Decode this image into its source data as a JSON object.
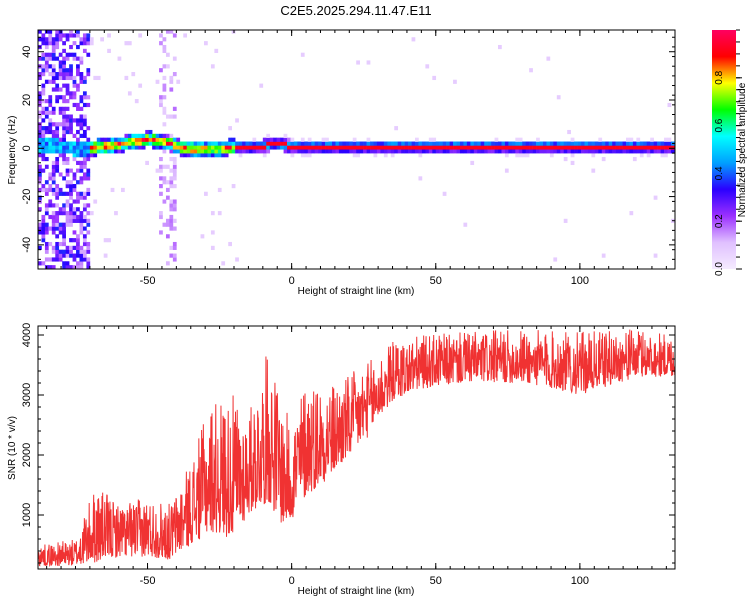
{
  "title": "C2E5.2025.294.11.47.E11",
  "chart_data": [
    {
      "type": "heatmap",
      "xlabel": "Height of straight line (km)",
      "ylabel": "Frequency (Hz)",
      "xlim": [
        -88,
        133
      ],
      "ylim": [
        -50,
        49
      ],
      "x_ticks": [
        -50,
        0,
        50,
        100
      ],
      "y_ticks": [
        -40,
        -20,
        0,
        20,
        40
      ],
      "grid": false,
      "colorbar": {
        "label": "Normalized spectral amplitude",
        "range": [
          0,
          1
        ],
        "ticks": [
          "0.0",
          "0.2",
          "0.4",
          "0.6",
          "0.8"
        ],
        "tick_values": [
          0,
          0.2,
          0.4,
          0.6,
          0.8
        ],
        "colormap": [
          "#f5ebff",
          "#e0c0ff",
          "#9b30ff",
          "#2a00ff",
          "#00a0ff",
          "#00ffff",
          "#00ff00",
          "#ffff00",
          "#ff0000",
          "#ff0060"
        ]
      },
      "ridge": {
        "description": "strong narrow band near 0 Hz",
        "center_hz": [
          [
            -84,
            0
          ],
          [
            -72,
            -1
          ],
          [
            -66,
            0
          ],
          [
            -60,
            1
          ],
          [
            -55,
            2
          ],
          [
            -50,
            3
          ],
          [
            -46,
            2
          ],
          [
            -42,
            1
          ],
          [
            -38,
            -1
          ],
          [
            -32,
            -1
          ],
          [
            -26,
            -1
          ],
          [
            -20,
            0
          ],
          [
            -12,
            0
          ],
          [
            -6,
            1
          ],
          [
            0,
            0
          ],
          [
            20,
            0
          ],
          [
            50,
            0
          ],
          [
            80,
            0
          ],
          [
            110,
            0
          ],
          [
            133,
            0
          ]
        ]
      }
    },
    {
      "type": "line",
      "xlabel": "Height of straight line (km)",
      "ylabel": "SNR (10 * v/v)",
      "xlim": [
        -88,
        133
      ],
      "ylim": [
        100,
        4150
      ],
      "x_ticks": [
        -50,
        0,
        50,
        100
      ],
      "y_ticks": [
        1000,
        2000,
        3000,
        4000
      ],
      "grid": false,
      "color": "#f03232",
      "envelope": [
        {
          "x": -88,
          "low": 150,
          "high": 500
        },
        {
          "x": -75,
          "low": 150,
          "high": 600
        },
        {
          "x": -68,
          "low": 200,
          "high": 1500
        },
        {
          "x": -60,
          "low": 300,
          "high": 1200
        },
        {
          "x": -50,
          "low": 300,
          "high": 1300
        },
        {
          "x": -42,
          "low": 250,
          "high": 1200
        },
        {
          "x": -35,
          "low": 500,
          "high": 1900
        },
        {
          "x": -28,
          "low": 700,
          "high": 2900
        },
        {
          "x": -20,
          "low": 600,
          "high": 3000
        },
        {
          "x": -15,
          "low": 1000,
          "high": 2700
        },
        {
          "x": -8,
          "low": 1200,
          "high": 3800
        },
        {
          "x": -3,
          "low": 800,
          "high": 2800
        },
        {
          "x": 0,
          "low": 900,
          "high": 2600
        },
        {
          "x": 5,
          "low": 1300,
          "high": 3300
        },
        {
          "x": 15,
          "low": 1700,
          "high": 3200
        },
        {
          "x": 25,
          "low": 2200,
          "high": 3500
        },
        {
          "x": 35,
          "low": 2900,
          "high": 3900
        },
        {
          "x": 45,
          "low": 3100,
          "high": 4000
        },
        {
          "x": 60,
          "low": 3200,
          "high": 4050
        },
        {
          "x": 80,
          "low": 3200,
          "high": 4100
        },
        {
          "x": 100,
          "low": 3000,
          "high": 4050
        },
        {
          "x": 120,
          "low": 3300,
          "high": 4100
        },
        {
          "x": 133,
          "low": 3300,
          "high": 4000
        }
      ]
    }
  ]
}
